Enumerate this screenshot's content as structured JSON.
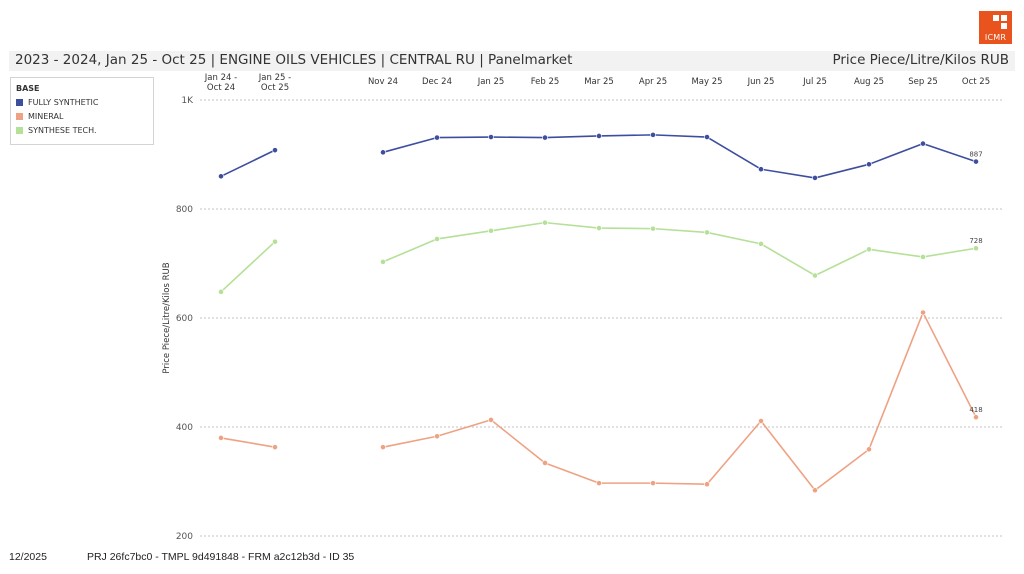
{
  "header": {
    "title": "2023 - 2024, Jan 25 - Oct 25 | ENGINE OILS VEHICLES | CENTRAL RU | Panelmarket",
    "unit": "Price Piece/Litre/Kilos RUB"
  },
  "logo": {
    "text": "ICMR",
    "color": "#e8531e"
  },
  "footer": {
    "date": "12/2025",
    "ids": "PRJ 26fc7bc0 - TMPL 9d491848 - FRM a2c12b3d - ID 35"
  },
  "chart_data": {
    "type": "line",
    "ylabel": "Price Piece/Litre/Kilos RUB",
    "ylim": [
      200,
      1000
    ],
    "yticks": [
      {
        "value": 200,
        "label": "200"
      },
      {
        "value": 400,
        "label": "400"
      },
      {
        "value": 600,
        "label": "600"
      },
      {
        "value": 800,
        "label": "800"
      },
      {
        "value": 1000,
        "label": "1K"
      }
    ],
    "grid": true,
    "legend": {
      "title": "BASE",
      "position": "top-left"
    },
    "categories": [
      [
        "Jan 24 -",
        "Oct 24"
      ],
      [
        "Jan 25 -",
        "Oct 25"
      ],
      [
        "Nov 24"
      ],
      [
        "Dec 24"
      ],
      [
        "Jan 25"
      ],
      [
        "Feb 25"
      ],
      [
        "Mar 25"
      ],
      [
        "Apr 25"
      ],
      [
        "May 25"
      ],
      [
        "Jun 25"
      ],
      [
        "Jul 25"
      ],
      [
        "Aug 25"
      ],
      [
        "Sep 25"
      ],
      [
        "Oct 25"
      ]
    ],
    "segments": [
      [
        0,
        1
      ],
      [
        2,
        13
      ]
    ],
    "series": [
      {
        "name": "FULLY SYNTHETIC",
        "color": "#3d4e9e",
        "values": [
          860,
          908,
          904,
          931,
          932,
          931,
          934,
          936,
          932,
          873,
          857,
          882,
          920,
          887
        ],
        "end_label": "887"
      },
      {
        "name": "MINERAL",
        "color": "#eea283",
        "values": [
          380,
          363,
          363,
          383,
          413,
          334,
          297,
          297,
          295,
          411,
          284,
          359,
          610,
          418
        ],
        "end_label": "418"
      },
      {
        "name": "SYNTHESE TECH.",
        "color": "#b5e098",
        "values": [
          648,
          740,
          703,
          745,
          760,
          775,
          765,
          764,
          757,
          736,
          678,
          726,
          712,
          728
        ],
        "end_label": "728"
      }
    ]
  }
}
